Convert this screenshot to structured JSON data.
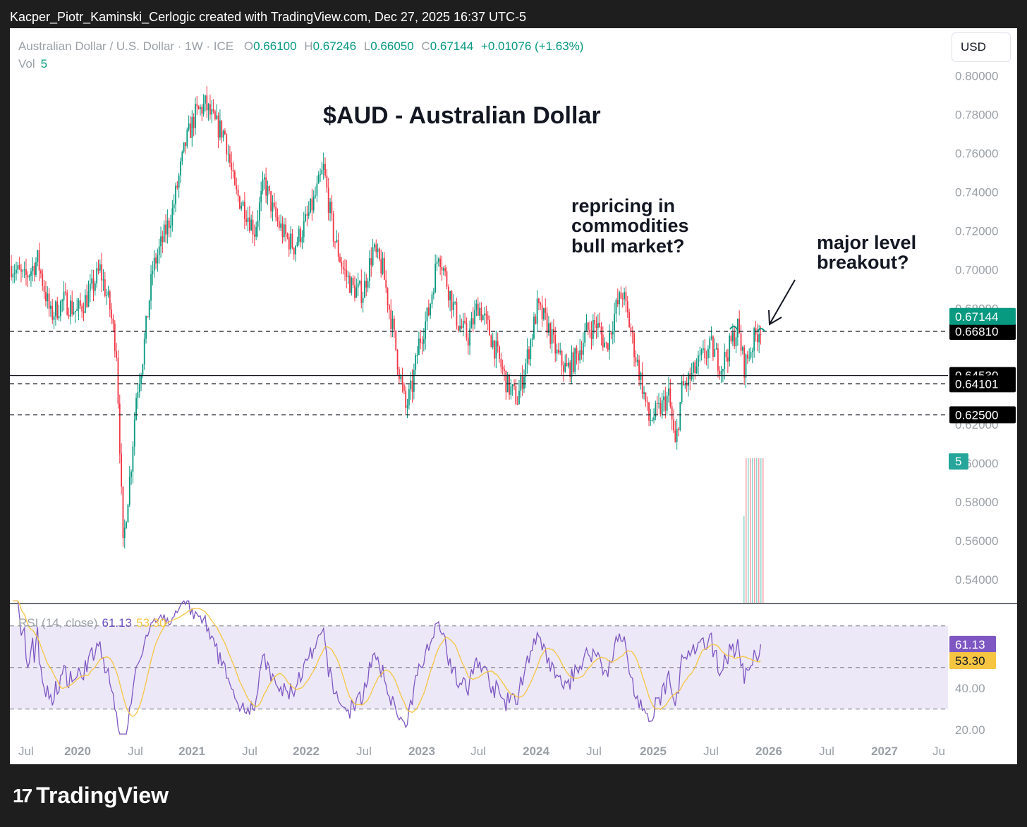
{
  "header": {
    "attribution": "Kacper_Piotr_Kaminski_Cerlogic created with TradingView.com, Dec 27, 2025 16:37 UTC-5"
  },
  "legend": {
    "symbol": "Australian Dollar / U.S. Dollar · 1W · ICE",
    "o_label": "O",
    "o": "0.66100",
    "h_label": "H",
    "h": "0.67246",
    "l_label": "L",
    "l": "0.66050",
    "c_label": "C",
    "c": "0.67144",
    "change": "+0.01076 (+1.63%)",
    "vol_label": "Vol",
    "vol": "5"
  },
  "currency_button": "USD",
  "annotations": {
    "title": "$AUD - Australian Dollar",
    "note1_l1": "repricing in",
    "note1_l2": "commodities",
    "note1_l3": "bull market?",
    "note2_l1": "major level",
    "note2_l2": "breakout?"
  },
  "rsi_legend": {
    "label": "RSI (14, close)",
    "rsi": "61.13",
    "ma": "53.30"
  },
  "colors": {
    "up": "#089981",
    "down": "#f23645",
    "rsi": "#7e57c2",
    "rsi_ma": "#f5c542",
    "rsi_band": "#ede8f8"
  },
  "footer": {
    "logo_text": "TradingView",
    "logo_mark": "17"
  },
  "chart_data": {
    "type": "candlestick",
    "interval": "1W",
    "symbol": "AUDUSD",
    "price_axis": {
      "ticks": [
        "0.80000",
        "0.78000",
        "0.76000",
        "0.74000",
        "0.72000",
        "0.70000",
        "0.68000",
        "0.62000",
        "0.60000",
        "0.58000",
        "0.56000",
        "0.54000"
      ],
      "ylim": [
        0.528,
        0.802
      ]
    },
    "x_axis": {
      "ticks": [
        "Jul",
        "2020",
        "Jul",
        "2021",
        "Jul",
        "2022",
        "Jul",
        "2023",
        "Jul",
        "2024",
        "Jul",
        "2025",
        "Jul",
        "2026",
        "Jul",
        "2027",
        "Ju"
      ]
    },
    "levels": [
      {
        "price": 0.6681,
        "style": "dashed",
        "label": "0.66810"
      },
      {
        "price": 0.6453,
        "style": "solid",
        "label": "0.64530"
      },
      {
        "price": 0.64101,
        "style": "dashed",
        "label": "0.64101"
      },
      {
        "price": 0.625,
        "style": "dashed",
        "label": "0.62500"
      }
    ],
    "last_price": {
      "value": 0.67144,
      "label": "0.67144"
    },
    "volume_label": "5",
    "path_anchors": [
      [
        0,
        0.702
      ],
      [
        8,
        0.695
      ],
      [
        16,
        0.705
      ],
      [
        24,
        0.676
      ],
      [
        32,
        0.684
      ],
      [
        40,
        0.678
      ],
      [
        48,
        0.688
      ],
      [
        54,
        0.7
      ],
      [
        60,
        0.68
      ],
      [
        64,
        0.658
      ],
      [
        66,
        0.61
      ],
      [
        68,
        0.556
      ],
      [
        70,
        0.575
      ],
      [
        73,
        0.6
      ],
      [
        76,
        0.635
      ],
      [
        80,
        0.655
      ],
      [
        86,
        0.7
      ],
      [
        92,
        0.715
      ],
      [
        98,
        0.73
      ],
      [
        106,
        0.765
      ],
      [
        112,
        0.78
      ],
      [
        118,
        0.785
      ],
      [
        124,
        0.775
      ],
      [
        130,
        0.77
      ],
      [
        136,
        0.74
      ],
      [
        142,
        0.732
      ],
      [
        148,
        0.72
      ],
      [
        154,
        0.745
      ],
      [
        160,
        0.728
      ],
      [
        166,
        0.718
      ],
      [
        172,
        0.712
      ],
      [
        178,
        0.722
      ],
      [
        184,
        0.735
      ],
      [
        190,
        0.752
      ],
      [
        196,
        0.718
      ],
      [
        202,
        0.7
      ],
      [
        208,
        0.69
      ],
      [
        214,
        0.688
      ],
      [
        220,
        0.71
      ],
      [
        226,
        0.7
      ],
      [
        232,
        0.67
      ],
      [
        236,
        0.648
      ],
      [
        240,
        0.628
      ],
      [
        244,
        0.64
      ],
      [
        248,
        0.662
      ],
      [
        254,
        0.678
      ],
      [
        260,
        0.71
      ],
      [
        266,
        0.69
      ],
      [
        272,
        0.672
      ],
      [
        278,
        0.665
      ],
      [
        284,
        0.682
      ],
      [
        290,
        0.67
      ],
      [
        296,
        0.655
      ],
      [
        302,
        0.64
      ],
      [
        308,
        0.633
      ],
      [
        314,
        0.655
      ],
      [
        320,
        0.68
      ],
      [
        326,
        0.672
      ],
      [
        332,
        0.656
      ],
      [
        338,
        0.648
      ],
      [
        344,
        0.655
      ],
      [
        350,
        0.668
      ],
      [
        356,
        0.672
      ],
      [
        362,
        0.66
      ],
      [
        368,
        0.68
      ],
      [
        372,
        0.688
      ],
      [
        376,
        0.672
      ],
      [
        380,
        0.655
      ],
      [
        384,
        0.64
      ],
      [
        388,
        0.622
      ],
      [
        394,
        0.627
      ],
      [
        400,
        0.635
      ],
      [
        404,
        0.608
      ],
      [
        408,
        0.638
      ],
      [
        414,
        0.645
      ],
      [
        420,
        0.654
      ],
      [
        426,
        0.66
      ],
      [
        432,
        0.65
      ],
      [
        438,
        0.662
      ],
      [
        442,
        0.67
      ],
      [
        446,
        0.65
      ],
      [
        452,
        0.664
      ],
      [
        456,
        0.671
      ]
    ],
    "volume_bars": [
      0.6,
      1,
      1,
      1,
      1,
      1,
      1,
      1,
      1,
      1
    ],
    "rsi": {
      "axis_ticks": [
        "40.00",
        "20.00"
      ],
      "bands": [
        70,
        50,
        30
      ],
      "ylim": [
        15,
        76
      ],
      "last_rsi": 61.13,
      "last_ma": 53.3
    }
  }
}
